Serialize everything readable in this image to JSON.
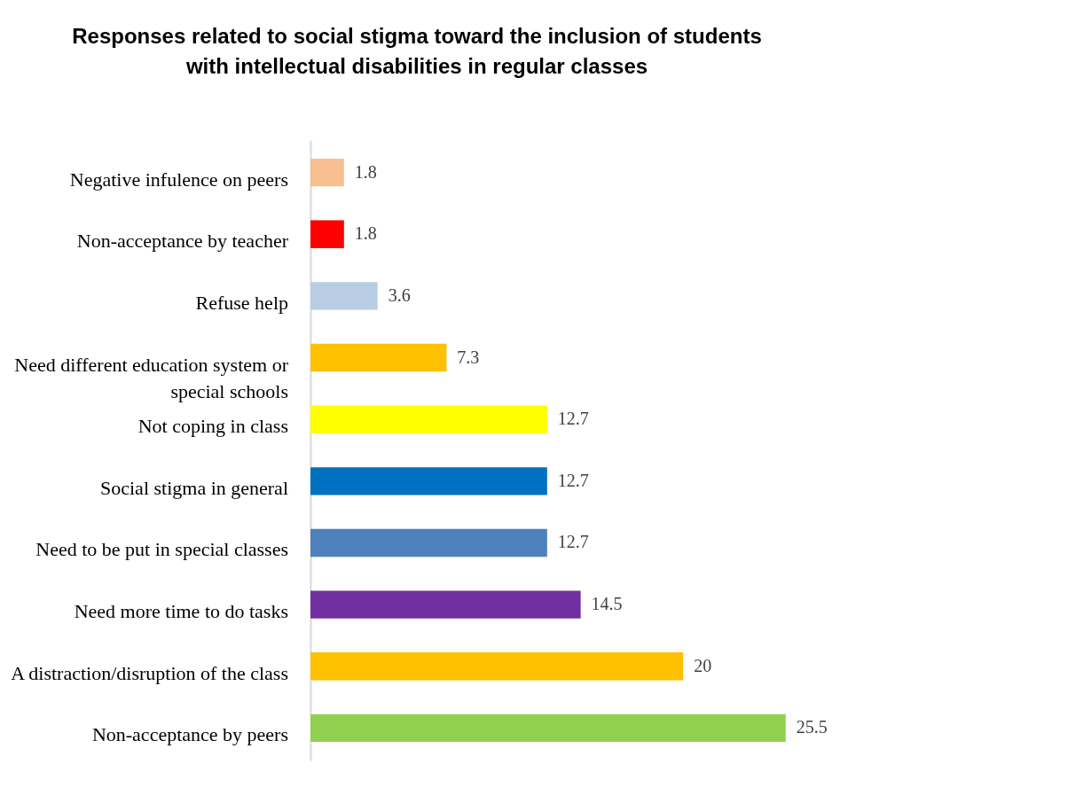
{
  "chart_data": {
    "type": "bar",
    "orientation": "horizontal",
    "title": "Responses related to social stigma toward the inclusion of students with intellectual disabilities in regular classes",
    "categories": [
      "Negative infulence on peers",
      "Non-acceptance by teacher",
      "Refuse help",
      "Need different education system or special schools",
      "Not coping in class",
      "Social stigma in general",
      "Need to be put in special classes",
      "Need more time to do tasks",
      "A distraction/disruption of the class",
      "Non-acceptance by peers"
    ],
    "values": [
      1.8,
      1.8,
      3.6,
      7.3,
      12.7,
      12.7,
      12.7,
      14.5,
      20,
      25.5
    ],
    "colors": [
      "#f8c090",
      "#ff0000",
      "#b8cce4",
      "#ffc000",
      "#ffff00",
      "#0070c0",
      "#4f81bd",
      "#7030a0",
      "#ffc000",
      "#92d050"
    ],
    "data_labels": true
  }
}
